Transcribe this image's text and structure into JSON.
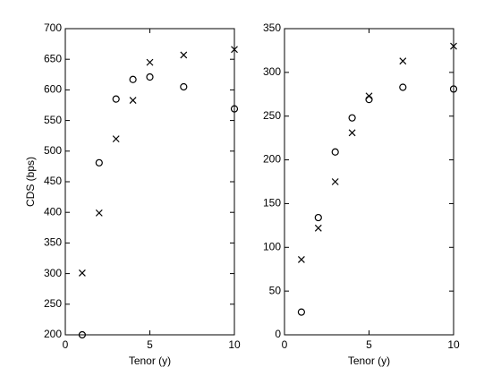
{
  "chart_data": [
    {
      "type": "scatter",
      "xlabel": "Tenor (y)",
      "ylabel": "CDS (bps)",
      "xlim": [
        0,
        10
      ],
      "ylim": [
        200,
        700
      ],
      "xticks": [
        0,
        5,
        10
      ],
      "yticks": [
        200,
        250,
        300,
        350,
        400,
        450,
        500,
        550,
        600,
        650,
        700
      ],
      "series": [
        {
          "marker": "o",
          "color": "#000000",
          "x": [
            1,
            2,
            3,
            4,
            5,
            7,
            10
          ],
          "values": [
            200,
            481,
            585,
            617,
            621,
            605,
            569
          ]
        },
        {
          "marker": "x",
          "color": "#000000",
          "x": [
            1,
            2,
            3,
            4,
            5,
            7,
            10
          ],
          "values": [
            301,
            399,
            520,
            583,
            645,
            657,
            666
          ]
        }
      ]
    },
    {
      "type": "scatter",
      "xlabel": "Tenor (y)",
      "xlim": [
        0,
        10
      ],
      "ylim": [
        0,
        350
      ],
      "xticks": [
        0,
        5,
        10
      ],
      "yticks": [
        0,
        50,
        100,
        150,
        200,
        250,
        300,
        350
      ],
      "series": [
        {
          "marker": "o",
          "color": "#000000",
          "x": [
            1,
            2,
            3,
            4,
            5,
            7,
            10
          ],
          "values": [
            26,
            134,
            209,
            248,
            269,
            283,
            281
          ]
        },
        {
          "marker": "x",
          "color": "#000000",
          "x": [
            1,
            2,
            3,
            4,
            5,
            7,
            10
          ],
          "values": [
            86,
            122,
            175,
            231,
            273,
            313,
            330
          ]
        }
      ]
    }
  ]
}
